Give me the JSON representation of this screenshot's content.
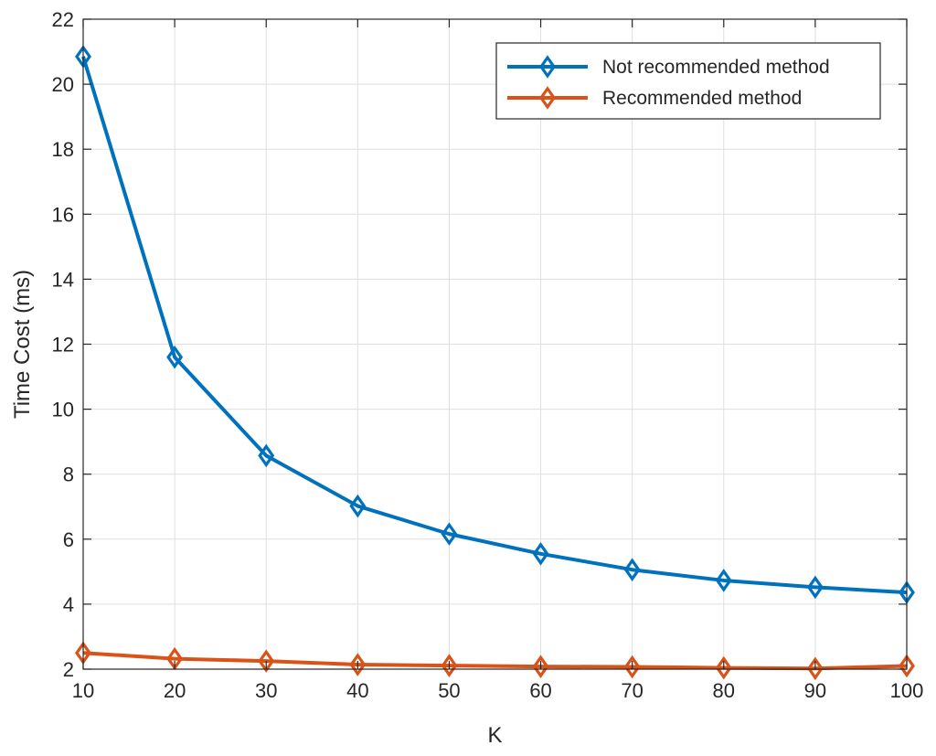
{
  "chart_data": {
    "type": "line",
    "title": "",
    "xlabel": "K",
    "ylabel": "Time Cost (ms)",
    "xlim": [
      10,
      100
    ],
    "ylim": [
      2,
      22
    ],
    "xticks": [
      10,
      20,
      30,
      40,
      50,
      60,
      70,
      80,
      90,
      100
    ],
    "yticks": [
      2,
      4,
      6,
      8,
      10,
      12,
      14,
      16,
      18,
      20,
      22
    ],
    "grid": true,
    "legend_position": "top-right",
    "x": [
      10,
      20,
      30,
      40,
      50,
      60,
      70,
      80,
      90,
      100
    ],
    "series": [
      {
        "name": "Not recommended method",
        "color": "#0072BD",
        "marker": "diamond",
        "values": [
          20.85,
          11.6,
          8.57,
          7.02,
          6.16,
          5.55,
          5.06,
          4.73,
          4.52,
          4.36
        ]
      },
      {
        "name": "Recommended method",
        "color": "#D95319",
        "marker": "diamond",
        "values": [
          2.5,
          2.32,
          2.25,
          2.14,
          2.11,
          2.08,
          2.07,
          2.04,
          2.02,
          2.1
        ]
      }
    ]
  }
}
